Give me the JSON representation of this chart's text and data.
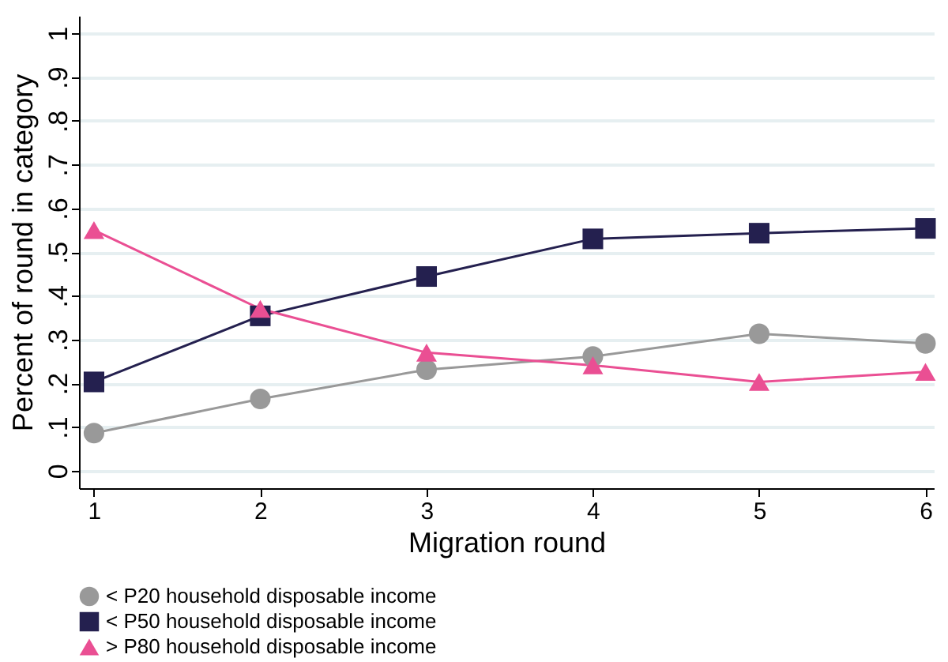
{
  "chart_data": {
    "type": "line",
    "xlabel": "Migration round",
    "ylabel": "Percent of round in category",
    "x": [
      1,
      2,
      3,
      4,
      5,
      6
    ],
    "series": [
      {
        "name": "< P20 household disposable income",
        "color": "#999999",
        "marker": "circle",
        "values": [
          0.086,
          0.164,
          0.231,
          0.261,
          0.313,
          0.291
        ]
      },
      {
        "name": "< P50 household disposable income",
        "color": "#24204f",
        "marker": "square",
        "values": [
          0.203,
          0.354,
          0.444,
          0.53,
          0.543,
          0.554
        ]
      },
      {
        "name": "> P80 household disposable income",
        "color": "#ea4f93",
        "marker": "triangle",
        "values": [
          0.55,
          0.37,
          0.27,
          0.241,
          0.203,
          0.226
        ]
      }
    ],
    "xlim": [
      0.91,
      6.05
    ],
    "xticks": [
      1,
      2,
      3,
      4,
      5,
      6
    ],
    "ylim": [
      -0.04,
      1.04
    ],
    "yticks": [
      {
        "value": 0,
        "label": "0"
      },
      {
        "value": 0.1,
        "label": ".1"
      },
      {
        "value": 0.2,
        "label": ".2"
      },
      {
        "value": 0.3,
        "label": ".3"
      },
      {
        "value": 0.4,
        "label": ".4"
      },
      {
        "value": 0.5,
        "label": ".5"
      },
      {
        "value": 0.6,
        "label": ".6"
      },
      {
        "value": 0.7,
        "label": ".7"
      },
      {
        "value": 0.8,
        "label": ".8"
      },
      {
        "value": 0.9,
        "label": ".9"
      },
      {
        "value": 1,
        "label": "1"
      }
    ],
    "grid": "y",
    "legend": "bottom",
    "line_style": "solid"
  }
}
